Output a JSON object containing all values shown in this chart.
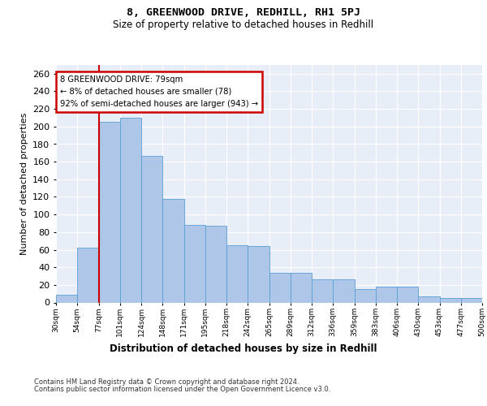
{
  "title": "8, GREENWOOD DRIVE, REDHILL, RH1 5PJ",
  "subtitle": "Size of property relative to detached houses in Redhill",
  "xlabel": "Distribution of detached houses by size in Redhill",
  "ylabel": "Number of detached properties",
  "footer_line1": "Contains HM Land Registry data © Crown copyright and database right 2024.",
  "footer_line2": "Contains public sector information licensed under the Open Government Licence v3.0.",
  "bin_labels": [
    "30sqm",
    "54sqm",
    "77sqm",
    "101sqm",
    "124sqm",
    "148sqm",
    "171sqm",
    "195sqm",
    "218sqm",
    "242sqm",
    "265sqm",
    "289sqm",
    "312sqm",
    "336sqm",
    "359sqm",
    "383sqm",
    "406sqm",
    "430sqm",
    "453sqm",
    "477sqm",
    "500sqm"
  ],
  "bar_values": [
    9,
    62,
    205,
    210,
    167,
    118,
    88,
    87,
    65,
    64,
    34,
    34,
    26,
    26,
    15,
    18,
    18,
    7,
    5,
    5
  ],
  "bar_color": "#aec6e8",
  "bar_edge_color": "#5a9fd4",
  "red_line_x": 2,
  "red_line_color": "#cc0000",
  "annotation_line1": "8 GREENWOOD DRIVE: 79sqm",
  "annotation_line2": "← 8% of detached houses are smaller (78)",
  "annotation_line3": "92% of semi-detached houses are larger (943) →",
  "annotation_box_facecolor": "#ffffff",
  "annotation_box_edgecolor": "#cc0000",
  "plot_bg_color": "#e8eef8",
  "ylim": [
    0,
    270
  ],
  "yticks": [
    0,
    20,
    40,
    60,
    80,
    100,
    120,
    140,
    160,
    180,
    200,
    220,
    240,
    260
  ]
}
